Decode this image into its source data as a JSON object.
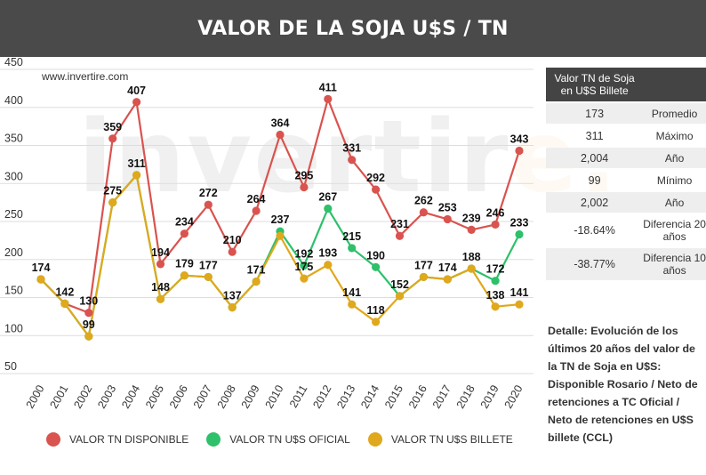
{
  "header": {
    "title": "VALOR DE LA SOJA U$S / TN"
  },
  "source": "www.invertire.com",
  "watermark": {
    "main": "invertir",
    "tail": "e."
  },
  "colors": {
    "disponible": "#d9534f",
    "oficial": "#2ec06b",
    "billete": "#e0a81c",
    "header_bg": "#4a4a4a"
  },
  "stats_table": {
    "header": "Valor TN de Soja en U$S Billete",
    "header_right": "",
    "rows": [
      {
        "value": "173",
        "label": "Promedio"
      },
      {
        "value": "311",
        "label": "Máximo"
      },
      {
        "value": "2,004",
        "label": "Año"
      },
      {
        "value": "99",
        "label": "Mínimo"
      },
      {
        "value": "2,002",
        "label": "Año"
      },
      {
        "value": "-18.64%",
        "label": "Diferencia 20 años"
      },
      {
        "value": "-38.77%",
        "label": "Diferencia 10 años"
      }
    ]
  },
  "detail": "Detalle: Evolución de los últimos 20 años del valor de la TN de Soja en U$S: Disponible Rosario / Neto de retenciones a TC Oficial / Neto de retenciones en U$S billete (CCL)",
  "chart_data": {
    "type": "line",
    "title": "VALOR DE LA SOJA U$S / TN",
    "categories": [
      "2000",
      "2001",
      "2002",
      "2003",
      "2004",
      "2005",
      "2006",
      "2007",
      "2008",
      "2009",
      "2010",
      "2011",
      "2012",
      "2013",
      "2014",
      "2015",
      "2016",
      "2017",
      "2018",
      "2019",
      "2020"
    ],
    "ylim": [
      50,
      450
    ],
    "yticks": [
      50,
      100,
      150,
      200,
      250,
      300,
      350,
      400,
      450
    ],
    "grid": true,
    "legend_position": "bottom",
    "series": [
      {
        "name": "VALOR TN DISPONIBLE",
        "color": "#d9534f",
        "values": [
          174,
          142,
          130,
          359,
          407,
          194,
          234,
          272,
          210,
          264,
          364,
          295,
          411,
          331,
          292,
          231,
          262,
          253,
          239,
          246,
          343
        ]
      },
      {
        "name": "VALOR TN U$S OFICIAL",
        "color": "#2ec06b",
        "values": [
          174,
          142,
          99,
          275,
          311,
          148,
          179,
          177,
          137,
          171,
          237,
          192,
          267,
          215,
          190,
          152,
          177,
          174,
          188,
          172,
          233
        ]
      },
      {
        "name": "VALOR TN U$S BILLETE",
        "color": "#e0a81c",
        "values": [
          174,
          142,
          99,
          275,
          311,
          148,
          179,
          177,
          137,
          171,
          231,
          175,
          193,
          141,
          118,
          152,
          177,
          174,
          188,
          138,
          141
        ]
      }
    ],
    "labels": {
      "disponible": [
        null,
        null,
        "130",
        "359",
        "407",
        "194",
        "234",
        "272",
        "210",
        "264",
        "364",
        "295",
        "411",
        "331",
        "292",
        "231",
        "262",
        "253",
        "239",
        "246",
        "343"
      ],
      "oficial": [
        null,
        null,
        null,
        null,
        null,
        null,
        null,
        null,
        null,
        null,
        "237",
        "192",
        null,
        "215",
        "190",
        null,
        null,
        null,
        "188",
        "172",
        "233"
      ],
      "billete": [
        "174",
        "142",
        "99",
        "275",
        "311",
        "148",
        "179",
        "177",
        "137",
        "171",
        null,
        "175",
        "193",
        "141",
        "118",
        "152",
        "177",
        "174",
        null,
        "138",
        "141"
      ]
    },
    "green_label_267": "267"
  }
}
